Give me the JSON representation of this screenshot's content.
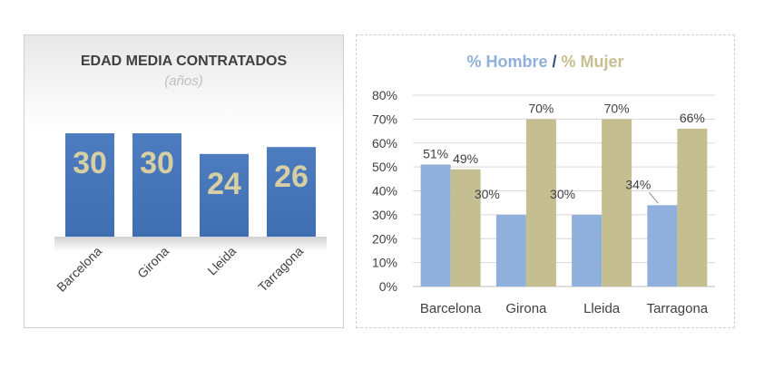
{
  "chart_data": [
    {
      "type": "bar",
      "title": "EDAD MEDIA CONTRATADOS",
      "subtitle": "(años)",
      "categories": [
        "Barcelona",
        "Girona",
        "Lleida",
        "Tarragona"
      ],
      "values": [
        30,
        30,
        24,
        26
      ],
      "data_labels": [
        "30",
        "30",
        "24",
        "26"
      ],
      "grid": false,
      "legend": "none",
      "colors": {
        "bar": "#4f7fc0",
        "label": "#d6cfa4"
      }
    },
    {
      "type": "bar",
      "title_parts": [
        "% Hombre",
        "/",
        "% Mujer"
      ],
      "categories": [
        "Barcelona",
        "Girona",
        "Lleida",
        "Tarragona"
      ],
      "series": [
        {
          "name": "% Hombre",
          "values": [
            51,
            30,
            30,
            34
          ],
          "labels": [
            "51%",
            "30%",
            "30%",
            "34%"
          ]
        },
        {
          "name": "% Mujer",
          "values": [
            49,
            70,
            70,
            66
          ],
          "labels": [
            "49%",
            "70%",
            "70%",
            "66%"
          ]
        }
      ],
      "ylim": [
        0,
        80
      ],
      "yticks": [
        "0%",
        "10%",
        "20%",
        "30%",
        "40%",
        "50%",
        "60%",
        "70%",
        "80%"
      ],
      "grid": true,
      "legend": "none",
      "colors": {
        "hombre": "#8eb0da",
        "mujer": "#c5be91",
        "separator": "#2f4f7f"
      }
    }
  ]
}
